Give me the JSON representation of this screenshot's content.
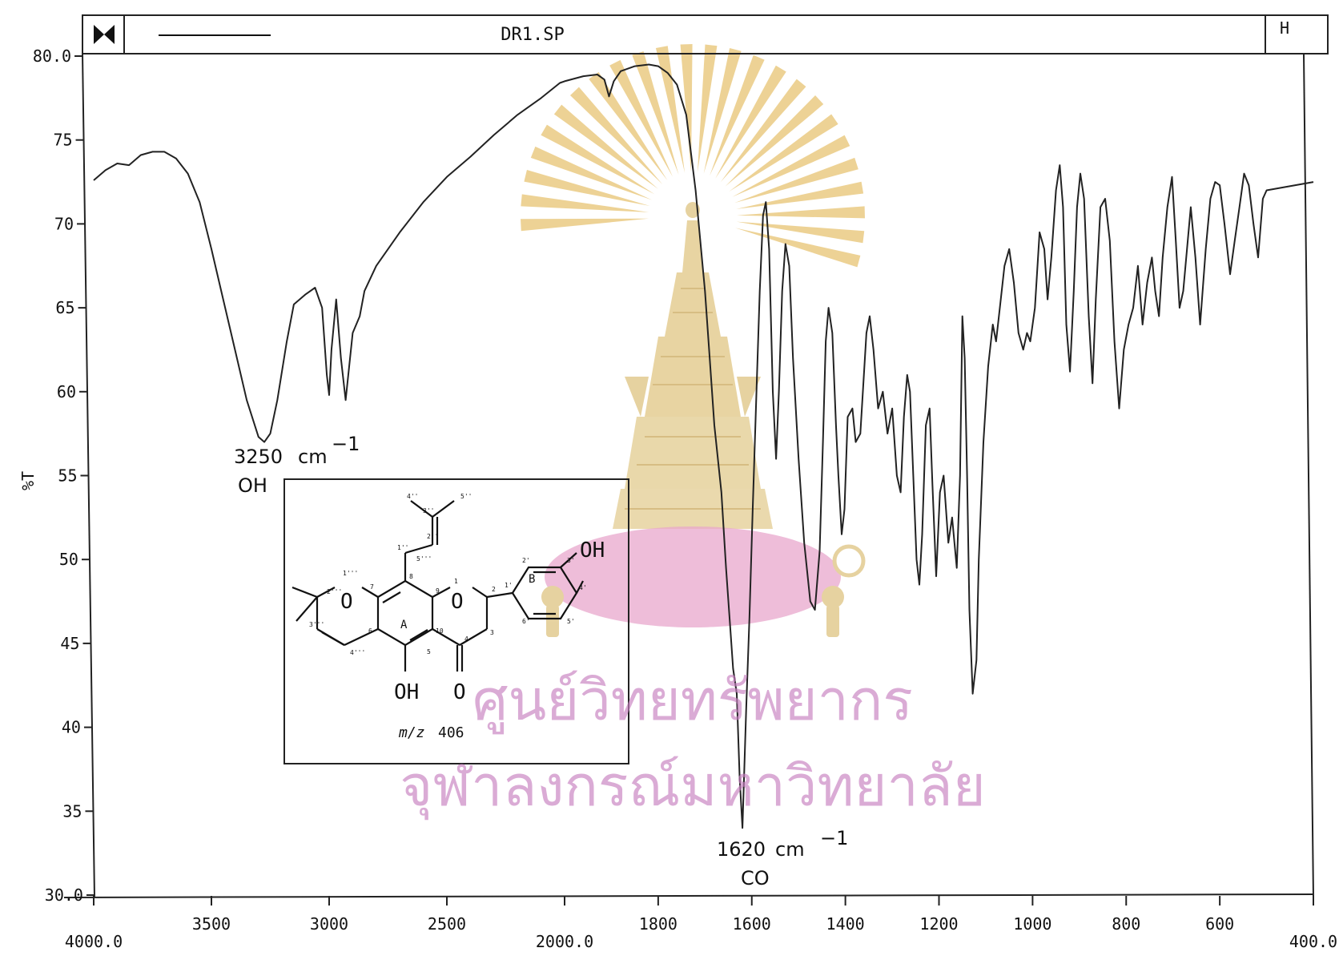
{
  "header": {
    "file_name": "DR1.SP",
    "left_button": "bowtie",
    "right_button": "H"
  },
  "chart_data": {
    "type": "line",
    "title": "DR1.SP",
    "xlabel": "",
    "ylabel": "%T",
    "x_ticks": [
      "4000.0",
      "3500",
      "3000",
      "2500",
      "2000.0",
      "1800",
      "1600",
      "1400",
      "1200",
      "1000",
      "800",
      "600",
      "400.0"
    ],
    "y_ticks": [
      "30.0",
      "35",
      "40",
      "45",
      "50",
      "55",
      "60",
      "65",
      "70",
      "75",
      "80.0"
    ],
    "xlim": [
      4000,
      400
    ],
    "ylim": [
      30,
      80
    ],
    "x_scale_note": "scale changes at 2000 cm-1",
    "grid": false,
    "series": [
      {
        "color": "#222222",
        "points": [
          [
            4000,
            72.6
          ],
          [
            3950,
            73.2
          ],
          [
            3900,
            73.6
          ],
          [
            3850,
            73.5
          ],
          [
            3800,
            74.1
          ],
          [
            3750,
            74.3
          ],
          [
            3700,
            74.3
          ],
          [
            3650,
            73.9
          ],
          [
            3600,
            73.0
          ],
          [
            3550,
            71.3
          ],
          [
            3500,
            68.5
          ],
          [
            3450,
            65.5
          ],
          [
            3400,
            62.5
          ],
          [
            3350,
            59.5
          ],
          [
            3300,
            57.3
          ],
          [
            3275,
            57.0
          ],
          [
            3250,
            57.5
          ],
          [
            3220,
            59.5
          ],
          [
            3180,
            63.0
          ],
          [
            3150,
            65.2
          ],
          [
            3100,
            65.8
          ],
          [
            3060,
            66.2
          ],
          [
            3030,
            65.0
          ],
          [
            3010,
            61.0
          ],
          [
            3000,
            59.8
          ],
          [
            2990,
            62.5
          ],
          [
            2970,
            65.5
          ],
          [
            2950,
            62.0
          ],
          [
            2930,
            59.5
          ],
          [
            2900,
            63.5
          ],
          [
            2870,
            64.5
          ],
          [
            2850,
            66.0
          ],
          [
            2800,
            67.5
          ],
          [
            2700,
            69.5
          ],
          [
            2600,
            71.3
          ],
          [
            2500,
            72.8
          ],
          [
            2400,
            74.0
          ],
          [
            2300,
            75.3
          ],
          [
            2200,
            76.5
          ],
          [
            2100,
            77.5
          ],
          [
            2020,
            78.4
          ],
          [
            2000,
            78.5
          ],
          [
            1960,
            78.8
          ],
          [
            1930,
            78.9
          ],
          [
            1915,
            78.6
          ],
          [
            1905,
            77.6
          ],
          [
            1895,
            78.5
          ],
          [
            1880,
            79.1
          ],
          [
            1850,
            79.4
          ],
          [
            1820,
            79.5
          ],
          [
            1800,
            79.4
          ],
          [
            1780,
            79.0
          ],
          [
            1760,
            78.3
          ],
          [
            1740,
            76.5
          ],
          [
            1720,
            72.0
          ],
          [
            1700,
            66.0
          ],
          [
            1690,
            62.0
          ],
          [
            1680,
            58.0
          ],
          [
            1665,
            54.0
          ],
          [
            1655,
            49.5
          ],
          [
            1645,
            45.5
          ],
          [
            1640,
            43.5
          ],
          [
            1632,
            42.0
          ],
          [
            1626,
            37.0
          ],
          [
            1620,
            34.0
          ],
          [
            1612,
            41.0
          ],
          [
            1605,
            46.5
          ],
          [
            1598,
            53.0
          ],
          [
            1590,
            60.0
          ],
          [
            1583,
            66.0
          ],
          [
            1576,
            70.5
          ],
          [
            1570,
            71.3
          ],
          [
            1563,
            68.5
          ],
          [
            1555,
            60.0
          ],
          [
            1548,
            56.0
          ],
          [
            1542,
            60.0
          ],
          [
            1535,
            66.0
          ],
          [
            1528,
            68.8
          ],
          [
            1520,
            67.5
          ],
          [
            1512,
            62.0
          ],
          [
            1500,
            56.0
          ],
          [
            1488,
            51.0
          ],
          [
            1475,
            47.5
          ],
          [
            1465,
            47.0
          ],
          [
            1455,
            50.5
          ],
          [
            1448,
            57.0
          ],
          [
            1442,
            63.0
          ],
          [
            1436,
            65.0
          ],
          [
            1428,
            63.5
          ],
          [
            1420,
            58.0
          ],
          [
            1415,
            55.0
          ],
          [
            1408,
            51.5
          ],
          [
            1402,
            53.0
          ],
          [
            1395,
            58.5
          ],
          [
            1385,
            59.0
          ],
          [
            1378,
            57.0
          ],
          [
            1368,
            57.5
          ],
          [
            1355,
            63.5
          ],
          [
            1348,
            64.5
          ],
          [
            1340,
            62.5
          ],
          [
            1330,
            59.0
          ],
          [
            1320,
            60.0
          ],
          [
            1310,
            57.5
          ],
          [
            1300,
            59.0
          ],
          [
            1290,
            55.0
          ],
          [
            1282,
            54.0
          ],
          [
            1275,
            58.5
          ],
          [
            1268,
            61.0
          ],
          [
            1262,
            60.0
          ],
          [
            1255,
            55.0
          ],
          [
            1248,
            50.0
          ],
          [
            1242,
            48.5
          ],
          [
            1236,
            51.5
          ],
          [
            1228,
            58.0
          ],
          [
            1220,
            59.0
          ],
          [
            1214,
            54.5
          ],
          [
            1206,
            49.0
          ],
          [
            1198,
            54.0
          ],
          [
            1190,
            55.0
          ],
          [
            1180,
            51.0
          ],
          [
            1172,
            52.5
          ],
          [
            1162,
            49.5
          ],
          [
            1155,
            55.0
          ],
          [
            1150,
            64.5
          ],
          [
            1145,
            62.0
          ],
          [
            1140,
            55.0
          ],
          [
            1135,
            47.0
          ],
          [
            1128,
            42.0
          ],
          [
            1120,
            44.0
          ],
          [
            1115,
            50.0
          ],
          [
            1105,
            57.0
          ],
          [
            1095,
            61.5
          ],
          [
            1085,
            64.0
          ],
          [
            1078,
            63.0
          ],
          [
            1070,
            65.0
          ],
          [
            1060,
            67.5
          ],
          [
            1050,
            68.5
          ],
          [
            1040,
            66.5
          ],
          [
            1030,
            63.5
          ],
          [
            1020,
            62.5
          ],
          [
            1012,
            63.5
          ],
          [
            1005,
            63.0
          ],
          [
            995,
            65.0
          ],
          [
            985,
            69.5
          ],
          [
            975,
            68.5
          ],
          [
            968,
            65.5
          ],
          [
            960,
            68.0
          ],
          [
            950,
            72.0
          ],
          [
            942,
            73.5
          ],
          [
            935,
            71.0
          ],
          [
            928,
            64.0
          ],
          [
            920,
            61.2
          ],
          [
            912,
            66.0
          ],
          [
            905,
            71.0
          ],
          [
            898,
            73.0
          ],
          [
            890,
            71.5
          ],
          [
            880,
            64.5
          ],
          [
            872,
            60.5
          ],
          [
            865,
            65.5
          ],
          [
            855,
            71.0
          ],
          [
            845,
            71.5
          ],
          [
            835,
            69.0
          ],
          [
            825,
            63.0
          ],
          [
            815,
            59.0
          ],
          [
            805,
            62.5
          ],
          [
            795,
            64.0
          ],
          [
            785,
            65.0
          ],
          [
            775,
            67.5
          ],
          [
            765,
            64.0
          ],
          [
            755,
            66.5
          ],
          [
            745,
            68.0
          ],
          [
            738,
            66.0
          ],
          [
            730,
            64.5
          ],
          [
            722,
            68.0
          ],
          [
            712,
            71.0
          ],
          [
            702,
            72.8
          ],
          [
            694,
            69.0
          ],
          [
            686,
            65.0
          ],
          [
            678,
            66.0
          ],
          [
            670,
            68.5
          ],
          [
            662,
            71.0
          ],
          [
            652,
            68.0
          ],
          [
            642,
            64.0
          ],
          [
            630,
            68.5
          ],
          [
            620,
            71.5
          ],
          [
            610,
            72.5
          ],
          [
            600,
            72.3
          ],
          [
            590,
            70.0
          ],
          [
            578,
            67.0
          ],
          [
            568,
            69.0
          ],
          [
            558,
            71.0
          ],
          [
            548,
            73.0
          ],
          [
            538,
            72.3
          ],
          [
            528,
            70.0
          ],
          [
            518,
            68.0
          ],
          [
            508,
            71.5
          ],
          [
            500,
            72.0
          ],
          [
            400,
            72.5
          ]
        ]
      }
    ],
    "annotations": [
      {
        "x": 3250,
        "y": 57.0,
        "wavenumber": "3250",
        "unit": "cm",
        "exponent": "−1",
        "group": "OH"
      },
      {
        "x": 1620,
        "y": 34.0,
        "wavenumber": "1620",
        "unit": "cm",
        "exponent": "−1",
        "group": "CO"
      }
    ]
  },
  "inset": {
    "ring_labels": [
      "A",
      "B"
    ],
    "substituents": [
      "OH",
      "OH",
      "O",
      "O",
      "O"
    ],
    "mass_italic": "m/z",
    "mass_value": "406",
    "atom_numbers": [
      "1",
      "2",
      "3",
      "4",
      "5",
      "6",
      "7",
      "8",
      "9",
      "10",
      "1'",
      "2'",
      "3'",
      "4'",
      "5'",
      "6'",
      "1''",
      "2''",
      "3''",
      "4''",
      "5''",
      "1'''",
      "2'''",
      "3'''",
      "4'''",
      "5'''"
    ]
  },
  "watermark": {
    "line1": "ศูนย์วิทยทรัพยากร",
    "line2": "จุฬาลงกรณ์มหาวิทยาลัย",
    "emblem_colors": {
      "rays": "#e8c77a",
      "crown": "#e6d2a0",
      "pink": "#e8a7cc",
      "text": "#c77fc0"
    }
  }
}
